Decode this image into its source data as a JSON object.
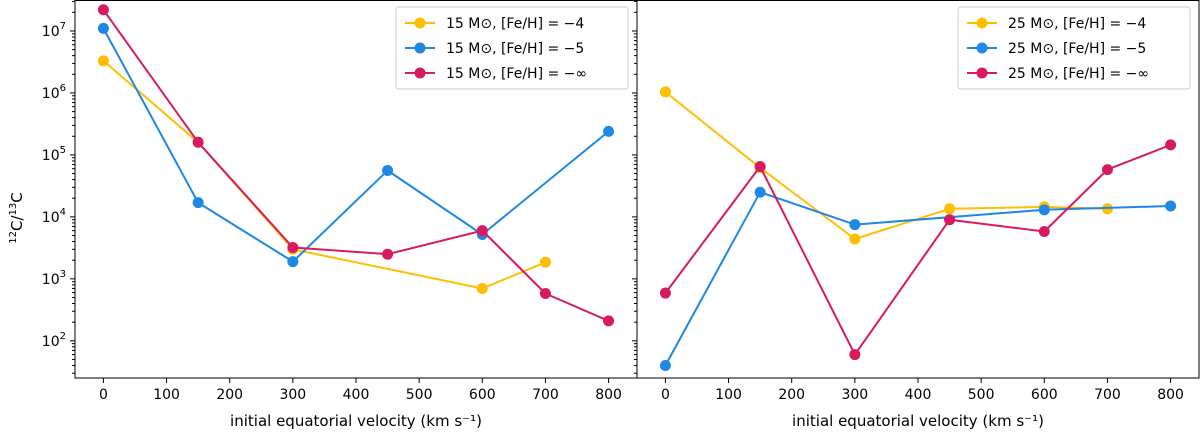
{
  "chart_data": [
    {
      "type": "line",
      "xlabel": "initial equatorial velocity (km s⁻¹)",
      "ylabel": "¹²C/¹³C",
      "yscale": "log",
      "xlim": [
        -45,
        845
      ],
      "ylim_log10": [
        1.4,
        7.5
      ],
      "xticks": [
        0,
        100,
        200,
        300,
        400,
        500,
        600,
        700,
        800
      ],
      "xtick_labels": [
        "0",
        "100",
        "200",
        "300",
        "400",
        "500",
        "600",
        "700",
        "800"
      ],
      "yticks_log10": [
        2,
        3,
        4,
        5,
        6,
        7
      ],
      "ytick_labels": [
        "10",
        "10",
        "10",
        "10",
        "10",
        "10"
      ],
      "ytick_exponents": [
        "2",
        "3",
        "4",
        "5",
        "6",
        "7"
      ],
      "legend_position": "top-right",
      "series": [
        {
          "name": "15 M⊙, [Fe/H] = −4",
          "color": "#FFBF00",
          "x": [
            0,
            150,
            300,
            600,
            700
          ],
          "y": [
            3300000,
            160000,
            3000,
            700,
            1850
          ]
        },
        {
          "name": "15 M⊙, [Fe/H] = −5",
          "color": "#1E88E5",
          "x": [
            0,
            150,
            300,
            450,
            600,
            800
          ],
          "y": [
            11000000,
            17000,
            1900,
            56000,
            5200,
            240000
          ]
        },
        {
          "name": "15 M⊙, [Fe/H] = −∞",
          "color": "#D81B60",
          "x": [
            0,
            150,
            300,
            450,
            600,
            700,
            800
          ],
          "y": [
            22000000,
            160000,
            3200,
            2500,
            6000,
            580,
            210
          ]
        }
      ]
    },
    {
      "type": "line",
      "xlabel": "initial equatorial velocity (km s⁻¹)",
      "ylabel": "",
      "yscale": "log",
      "xlim": [
        -45,
        845
      ],
      "ylim_log10": [
        1.4,
        7.5
      ],
      "xticks": [
        0,
        100,
        200,
        300,
        400,
        500,
        600,
        700,
        800
      ],
      "xtick_labels": [
        "0",
        "100",
        "200",
        "300",
        "400",
        "500",
        "600",
        "700",
        "800"
      ],
      "legend_position": "top-right",
      "series": [
        {
          "name": "25 M⊙, [Fe/H] = −4",
          "color": "#FFBF00",
          "x": [
            0,
            150,
            300,
            450,
            600,
            700
          ],
          "y": [
            1040000,
            62000,
            4400,
            13500,
            14500,
            13500
          ]
        },
        {
          "name": "25 M⊙, [Fe/H] = −5",
          "color": "#1E88E5",
          "x": [
            0,
            150,
            300,
            600,
            800
          ],
          "y": [
            40,
            25000,
            7500,
            13000,
            15000
          ]
        },
        {
          "name": "25 M⊙, [Fe/H] = −∞",
          "color": "#D81B60",
          "x": [
            0,
            150,
            300,
            450,
            600,
            700,
            800
          ],
          "y": [
            590,
            65000,
            60,
            9000,
            5800,
            58000,
            145000
          ]
        }
      ]
    }
  ]
}
